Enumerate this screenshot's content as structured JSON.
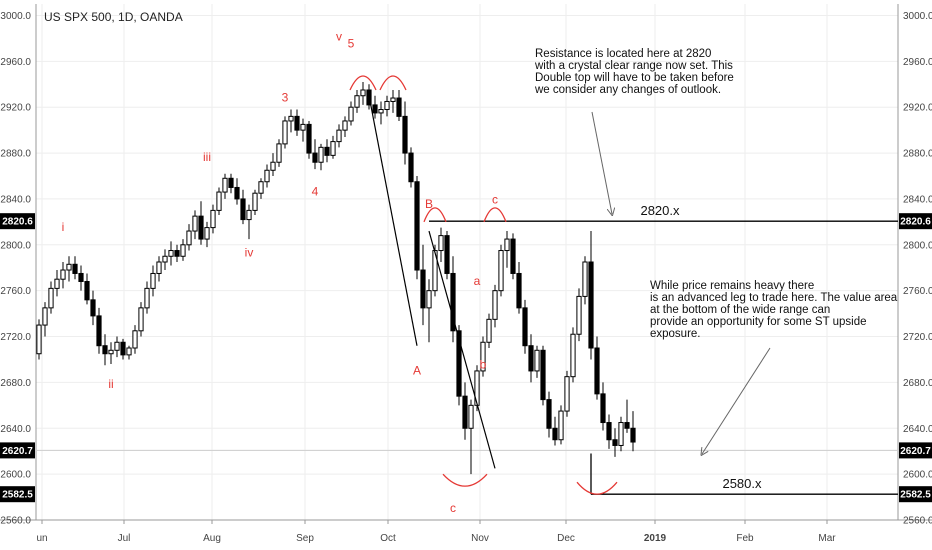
{
  "chart_data": {
    "type": "candlestick",
    "title": "US SPX 500, 1D, OANDA",
    "y_range": [
      2560,
      3010
    ],
    "y_ticks": [
      "3000.0",
      "2960.0",
      "2920.0",
      "2880.0",
      "2840.0",
      "2800.0",
      "2760.0",
      "2720.0",
      "2680.0",
      "2640.0",
      "2600.0",
      "2560.0"
    ],
    "x_ticks": [
      "un",
      "Jul",
      "Aug",
      "Sep",
      "Oct",
      "Nov",
      "Dec",
      "2019",
      "Feb",
      "Mar"
    ],
    "price_badges": [
      {
        "value": 2820.6,
        "label": "2820.6"
      },
      {
        "value": 2620.7,
        "label": "2620.7"
      },
      {
        "value": 2582.5,
        "label": "2582.5"
      }
    ],
    "series": [
      {
        "ohlc": [
          [
            2705,
            2735,
            2700,
            2730
          ],
          [
            2730,
            2750,
            2720,
            2745
          ],
          [
            2745,
            2768,
            2740,
            2762
          ],
          [
            2762,
            2778,
            2755,
            2770
          ],
          [
            2770,
            2785,
            2762,
            2778
          ],
          [
            2778,
            2790,
            2768,
            2783
          ],
          [
            2783,
            2790,
            2770,
            2775
          ],
          [
            2775,
            2782,
            2760,
            2768
          ],
          [
            2768,
            2775,
            2748,
            2752
          ],
          [
            2752,
            2760,
            2730,
            2738
          ],
          [
            2738,
            2745,
            2705,
            2712
          ],
          [
            2712,
            2722,
            2695,
            2705
          ],
          [
            2705,
            2715,
            2696,
            2708
          ],
          [
            2708,
            2720,
            2702,
            2715
          ],
          [
            2715,
            2718,
            2700,
            2704
          ],
          [
            2704,
            2712,
            2700,
            2710
          ],
          [
            2710,
            2730,
            2705,
            2725
          ],
          [
            2725,
            2750,
            2720,
            2745
          ],
          [
            2745,
            2768,
            2740,
            2762
          ],
          [
            2762,
            2782,
            2755,
            2775
          ],
          [
            2775,
            2790,
            2768,
            2785
          ],
          [
            2785,
            2796,
            2778,
            2790
          ],
          [
            2790,
            2803,
            2782,
            2795
          ],
          [
            2795,
            2800,
            2785,
            2790
          ],
          [
            2790,
            2805,
            2786,
            2800
          ],
          [
            2800,
            2818,
            2795,
            2812
          ],
          [
            2812,
            2830,
            2805,
            2825
          ],
          [
            2825,
            2838,
            2800,
            2805
          ],
          [
            2805,
            2820,
            2798,
            2815
          ],
          [
            2815,
            2835,
            2810,
            2830
          ],
          [
            2830,
            2850,
            2826,
            2846
          ],
          [
            2846,
            2862,
            2840,
            2858
          ],
          [
            2858,
            2862,
            2845,
            2850
          ],
          [
            2850,
            2858,
            2835,
            2840
          ],
          [
            2840,
            2848,
            2818,
            2822
          ],
          [
            2822,
            2835,
            2805,
            2830
          ],
          [
            2830,
            2848,
            2826,
            2845
          ],
          [
            2845,
            2858,
            2840,
            2855
          ],
          [
            2855,
            2870,
            2850,
            2865
          ],
          [
            2865,
            2880,
            2860,
            2872
          ],
          [
            2872,
            2892,
            2868,
            2888
          ],
          [
            2888,
            2912,
            2884,
            2908
          ],
          [
            2908,
            2918,
            2898,
            2912
          ],
          [
            2912,
            2918,
            2895,
            2900
          ],
          [
            2900,
            2910,
            2890,
            2905
          ],
          [
            2905,
            2908,
            2875,
            2880
          ],
          [
            2880,
            2892,
            2866,
            2872
          ],
          [
            2872,
            2888,
            2865,
            2885
          ],
          [
            2885,
            2892,
            2872,
            2878
          ],
          [
            2878,
            2895,
            2875,
            2890
          ],
          [
            2890,
            2905,
            2885,
            2900
          ],
          [
            2900,
            2912,
            2894,
            2908
          ],
          [
            2908,
            2925,
            2904,
            2920
          ],
          [
            2920,
            2935,
            2915,
            2930
          ],
          [
            2930,
            2942,
            2922,
            2935
          ],
          [
            2935,
            2940,
            2918,
            2922
          ],
          [
            2922,
            2930,
            2910,
            2915
          ],
          [
            2915,
            2925,
            2905,
            2918
          ],
          [
            2918,
            2930,
            2912,
            2925
          ],
          [
            2925,
            2935,
            2915,
            2928
          ],
          [
            2928,
            2935,
            2908,
            2912
          ],
          [
            2912,
            2925,
            2870,
            2880
          ],
          [
            2880,
            2885,
            2850,
            2855
          ],
          [
            2855,
            2860,
            2770,
            2778
          ],
          [
            2778,
            2800,
            2730,
            2745
          ],
          [
            2745,
            2770,
            2715,
            2760
          ],
          [
            2760,
            2800,
            2755,
            2795
          ],
          [
            2795,
            2815,
            2785,
            2808
          ],
          [
            2808,
            2812,
            2770,
            2775
          ],
          [
            2775,
            2790,
            2715,
            2725
          ],
          [
            2725,
            2730,
            2660,
            2668
          ],
          [
            2668,
            2680,
            2630,
            2640
          ],
          [
            2640,
            2665,
            2600,
            2660
          ],
          [
            2660,
            2695,
            2655,
            2690
          ],
          [
            2690,
            2720,
            2685,
            2715
          ],
          [
            2715,
            2740,
            2710,
            2735
          ],
          [
            2735,
            2765,
            2728,
            2760
          ],
          [
            2760,
            2800,
            2755,
            2795
          ],
          [
            2795,
            2812,
            2780,
            2805
          ],
          [
            2805,
            2810,
            2770,
            2775
          ],
          [
            2775,
            2785,
            2740,
            2745
          ],
          [
            2745,
            2752,
            2705,
            2712
          ],
          [
            2712,
            2722,
            2680,
            2690
          ],
          [
            2690,
            2712,
            2684,
            2708
          ],
          [
            2708,
            2712,
            2660,
            2665
          ],
          [
            2665,
            2672,
            2632,
            2640
          ],
          [
            2640,
            2650,
            2625,
            2630
          ],
          [
            2630,
            2660,
            2626,
            2655
          ],
          [
            2655,
            2690,
            2650,
            2685
          ],
          [
            2685,
            2728,
            2680,
            2722
          ],
          [
            2722,
            2762,
            2716,
            2755
          ],
          [
            2755,
            2790,
            2748,
            2785
          ],
          [
            2785,
            2812,
            2700,
            2710
          ],
          [
            2710,
            2720,
            2665,
            2670
          ],
          [
            2670,
            2680,
            2638,
            2645
          ],
          [
            2645,
            2652,
            2622,
            2630
          ],
          [
            2630,
            2640,
            2615,
            2625
          ],
          [
            2625,
            2650,
            2620,
            2645
          ],
          [
            2645,
            2665,
            2636,
            2640
          ],
          [
            2640,
            2655,
            2620,
            2628
          ]
        ]
      }
    ],
    "levels": [
      {
        "value": 2820.6,
        "label": "2820.x"
      },
      {
        "value": 2582.5,
        "label": "2580.x"
      }
    ],
    "reference_line": 2620.7,
    "wave_labels": [
      {
        "text": "i",
        "price": 2812,
        "bar": 4
      },
      {
        "text": "ii",
        "price": 2675,
        "bar": 12
      },
      {
        "text": "iii",
        "price": 2873,
        "bar": 28
      },
      {
        "text": "iv",
        "price": 2790,
        "bar": 35
      },
      {
        "text": "3",
        "price": 2925,
        "bar": 41
      },
      {
        "text": "4",
        "price": 2843,
        "bar": 46
      },
      {
        "text": "v",
        "price": 2978,
        "bar": 50
      },
      {
        "text": "5",
        "price": 2972,
        "bar": 52
      },
      {
        "text": "A",
        "price": 2687,
        "bar": 63
      },
      {
        "text": "B",
        "price": 2832,
        "bar": 65
      },
      {
        "text": "a",
        "price": 2765,
        "bar": 73
      },
      {
        "text": "b",
        "price": 2692,
        "bar": 74
      },
      {
        "text": "c",
        "price": 2836,
        "bar": 76
      },
      {
        "text": "c",
        "price": 2567,
        "bar": 69
      }
    ],
    "annotations": [
      {
        "lines": [
          "Resistance is located here at 2820",
          "with a crystal clear range now set. This",
          "Double top will have to be taken before",
          "we consider any changes of outlook."
        ]
      },
      {
        "lines": [
          "While price remains heavy there",
          "is an advanced leg to trade here. The value area",
          "at the bottom of the wide range can",
          "provide an opportunity for some ST upside",
          "exposure."
        ]
      }
    ],
    "grid": "horizontal-and-vertical",
    "legend": "none"
  },
  "colors": {
    "up": "#ffffff",
    "down": "#000000",
    "outline": "#000000",
    "wave": "#e53935",
    "grid": "#eeeeee",
    "badge": "#000000"
  }
}
